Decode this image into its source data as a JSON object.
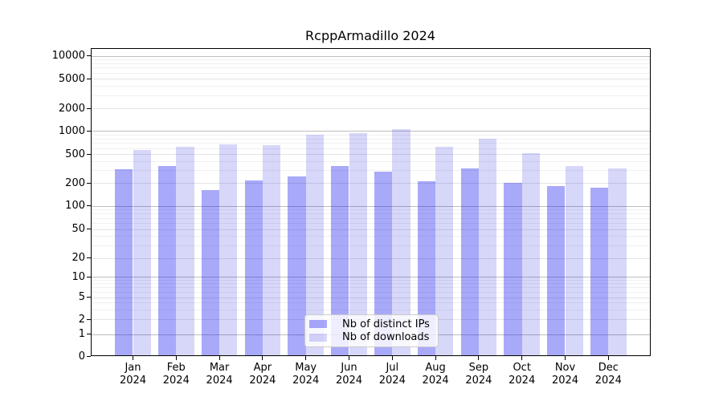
{
  "figure": {
    "colors": {
      "ips_bar": "rgba(8,8,238,0.35)",
      "downloads_bar": "rgba(8,8,215,0.16)",
      "grid_decade": "#bdbdbd",
      "grid_mid": "#e4e4e4",
      "grid_minor": "#f0f0f0",
      "spine": "#000000",
      "text": "#000000",
      "legend_bg": "rgba(255,255,255,0.8)",
      "legend_border": "#cccccc"
    }
  },
  "chart_data": {
    "type": "bar",
    "title": "RcppArmadillo 2024",
    "categories": [
      "Jan 2024",
      "Feb 2024",
      "Mar 2024",
      "Apr 2024",
      "May 2024",
      "Jun 2024",
      "Jul 2024",
      "Aug 2024",
      "Sep 2024",
      "Oct 2024",
      "Nov 2024",
      "Dec 2024"
    ],
    "series": [
      {
        "name": "Nb of distinct IPs",
        "values": [
          310,
          340,
          160,
          218,
          250,
          342,
          290,
          213,
          318,
          201,
          182,
          175
        ]
      },
      {
        "name": "Nb of downloads",
        "values": [
          573,
          620,
          675,
          648,
          898,
          943,
          1063,
          620,
          795,
          519,
          344,
          316
        ]
      }
    ],
    "xlabel": "",
    "ylabel": "",
    "yscale": "symlog",
    "yticks": [
      0,
      1,
      2,
      5,
      10,
      20,
      50,
      100,
      200,
      500,
      1000,
      2000,
      5000,
      10000
    ],
    "ylim": [
      0,
      12000
    ],
    "grid": true,
    "legend_position": "lower center (inside plot)"
  }
}
